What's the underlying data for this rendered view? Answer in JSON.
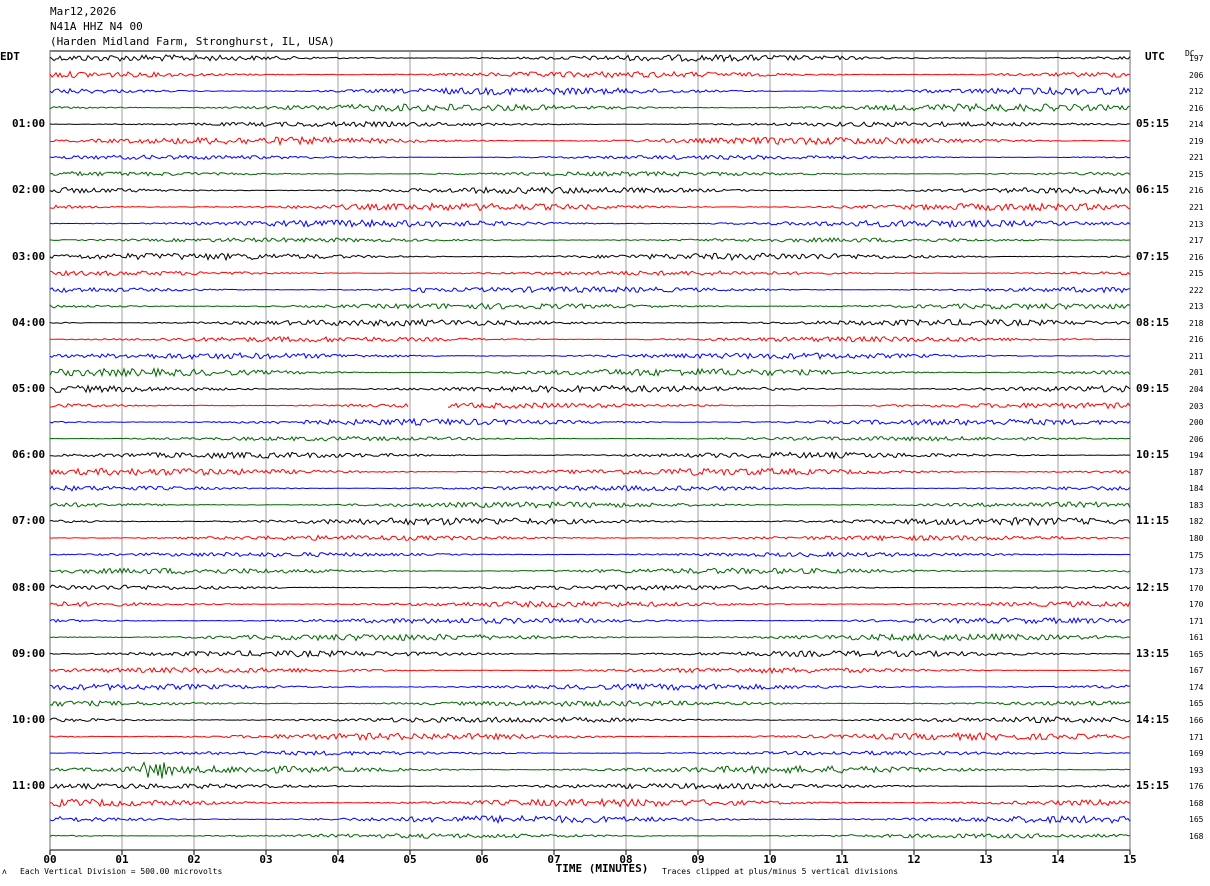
{
  "header": {
    "date": "Mar12,2026",
    "station": "N41A HHZ N4 00",
    "location": "(Harden Midland Farm, Stronghurst, IL, USA)"
  },
  "left_tz": "EDT",
  "right_tz": "UTC",
  "dc_label": "DC",
  "footer": {
    "scale": "Each Vertical Division =  500.00 microvolts",
    "clip": "Traces clipped at plus/minus 5 vertical divisions",
    "corner": "ᴧ"
  },
  "chart_data": {
    "type": "line",
    "title": "",
    "xlabel": "TIME (MINUTES)",
    "xlim": [
      0,
      15
    ],
    "x_ticks": [
      "00",
      "01",
      "02",
      "03",
      "04",
      "05",
      "06",
      "07",
      "08",
      "09",
      "10",
      "11",
      "12",
      "13",
      "14",
      "15"
    ],
    "trace_minutes": 15,
    "trace_count": 48,
    "trace_colors": [
      "#000000",
      "#ff0000",
      "#0000ff",
      "#006600"
    ],
    "left_hour_labels": [
      "01:00",
      "02:00",
      "03:00",
      "04:00",
      "05:00",
      "06:00",
      "07:00",
      "08:00",
      "09:00",
      "10:00",
      "11:00"
    ],
    "right_hour_labels": [
      "05:15",
      "06:15",
      "07:15",
      "08:15",
      "09:15",
      "10:15",
      "11:15",
      "12:15",
      "13:15",
      "14:15",
      "15:15"
    ],
    "dc_offsets": [
      197,
      206,
      212,
      216,
      214,
      219,
      221,
      215,
      216,
      221,
      213,
      217,
      216,
      215,
      222,
      213,
      218,
      216,
      211,
      201,
      204,
      203,
      200,
      206,
      194,
      187,
      184,
      183,
      182,
      180,
      175,
      173,
      170,
      170,
      171,
      161,
      165,
      167,
      174,
      165,
      166,
      171,
      169,
      193,
      176,
      168,
      165,
      168
    ],
    "events": [
      {
        "trace": 14,
        "minute": 5.2,
        "description": "spike"
      },
      {
        "trace": 43,
        "minute": 1.3,
        "description": "burst"
      }
    ],
    "gaps": [
      {
        "trace": 21,
        "start_minute": 5.0,
        "end_minute": 5.5
      }
    ],
    "grid": true
  }
}
